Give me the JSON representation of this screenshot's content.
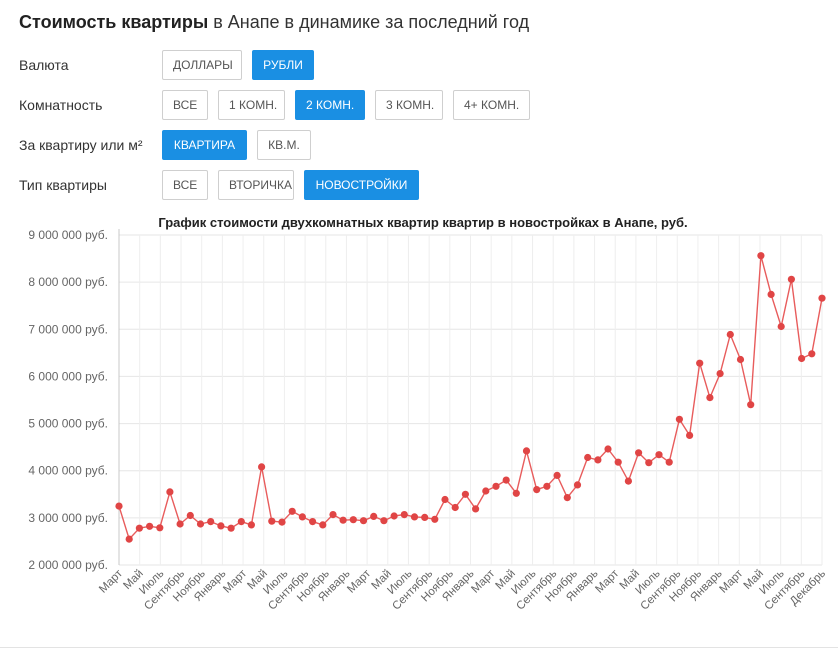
{
  "header": {
    "title_bold": "Стоимость квартиры",
    "title_rest": " в Анапе в динамике за последний год"
  },
  "filters": [
    {
      "label": "Валюта",
      "options": [
        "ДОЛЛАРЫ",
        "РУБЛИ"
      ],
      "active": 1,
      "widths": [
        80,
        62
      ]
    },
    {
      "label": "Комнатность",
      "options": [
        "ВСЕ",
        "1 КОМН.",
        "2 КОМН.",
        "3 КОМН.",
        "4+ КОМН."
      ],
      "active": 2,
      "widths": [
        46,
        67,
        70,
        68,
        77
      ]
    },
    {
      "label": "За квартиру или м²",
      "options": [
        "КВАРТИРА",
        "КВ.М."
      ],
      "active": 0,
      "widths": [
        85,
        54
      ]
    },
    {
      "label": "Тип квартиры",
      "options": [
        "ВСЕ",
        "ВТОРИЧКА",
        "НОВОСТРОЙКИ"
      ],
      "active": 2,
      "widths": [
        46,
        76,
        115
      ]
    }
  ],
  "chart_data": {
    "type": "line",
    "title": "График стоимости двухкомнатных квартир квартир в новостройках в Анапе, руб.",
    "ylim": [
      2000000,
      9000000
    ],
    "yticks": [
      {
        "value": 9000000,
        "label": "9 000 000 руб."
      },
      {
        "value": 8000000,
        "label": "8 000 000 руб."
      },
      {
        "value": 7000000,
        "label": "7 000 000 руб."
      },
      {
        "value": 6000000,
        "label": "6 000 000 руб."
      },
      {
        "value": 5000000,
        "label": "5 000 000 руб."
      },
      {
        "value": 4000000,
        "label": "4 000 000 руб."
      },
      {
        "value": 3000000,
        "label": "3 000 000 руб."
      },
      {
        "value": 2000000,
        "label": "2 000 000 руб."
      }
    ],
    "xticks": [
      "Март",
      "Май",
      "Июль",
      "Сентябрь",
      "Ноябрь",
      "Январь",
      "Март",
      "Май",
      "Июль",
      "Сентябрь",
      "Ноябрь",
      "Январь",
      "Март",
      "Май",
      "Июль",
      "Сентябрь",
      "Ноябрь",
      "Январь",
      "Март",
      "Май",
      "Июль",
      "Сентябрь",
      "Ноябрь",
      "Январь",
      "Март",
      "Май",
      "Июль",
      "Сентябрь",
      "Ноябрь",
      "Январь",
      "Март",
      "Май",
      "Июль",
      "Сентябрь",
      "Декабрь"
    ],
    "grid": true,
    "line_color": "#e85c5c",
    "point_color": "#e04545",
    "values": [
      3250000,
      2550000,
      2780000,
      2820000,
      2790000,
      3550000,
      2870000,
      3050000,
      2870000,
      2920000,
      2830000,
      2780000,
      2920000,
      2850000,
      4080000,
      2930000,
      2910000,
      3140000,
      3020000,
      2920000,
      2850000,
      3070000,
      2950000,
      2960000,
      2940000,
      3030000,
      2940000,
      3040000,
      3070000,
      3020000,
      3010000,
      2970000,
      3390000,
      3220000,
      3500000,
      3190000,
      3570000,
      3670000,
      3800000,
      3520000,
      4420000,
      3600000,
      3670000,
      3900000,
      3430000,
      3700000,
      4280000,
      4230000,
      4460000,
      4180000,
      3780000,
      4380000,
      4170000,
      4340000,
      4180000,
      5090000,
      4750000,
      6280000,
      5550000,
      6060000,
      6890000,
      6360000,
      5400000,
      8560000,
      7740000,
      7060000,
      8060000,
      6380000,
      6480000,
      7660000
    ]
  }
}
